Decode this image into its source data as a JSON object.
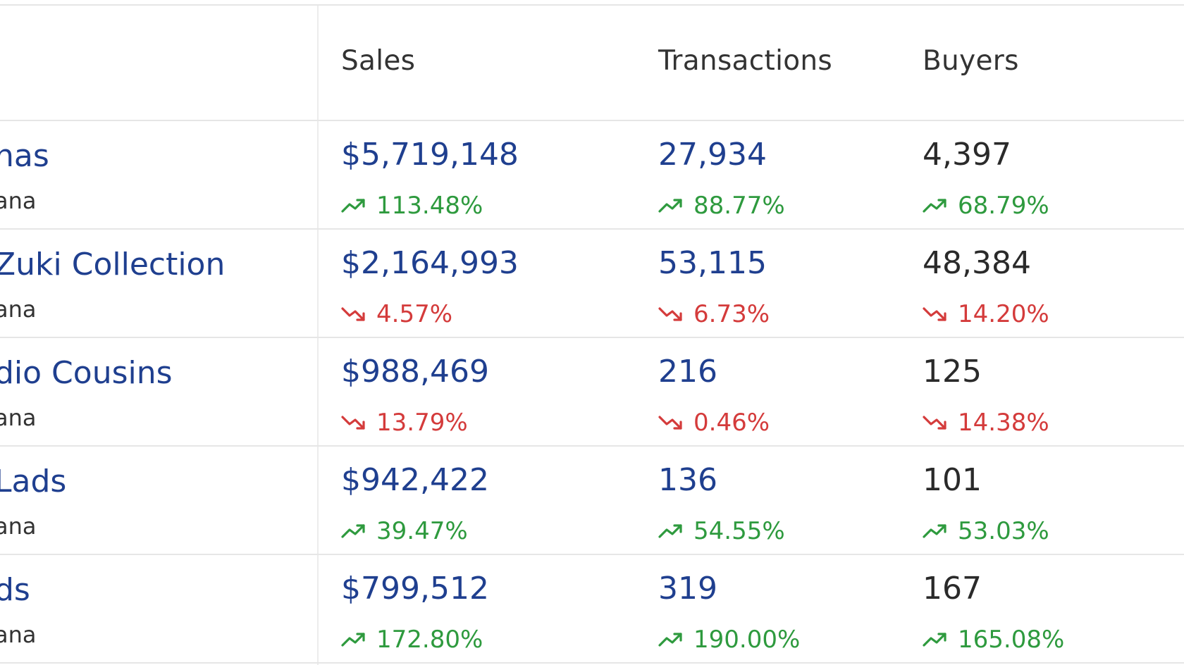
{
  "headers": {
    "sales": "Sales",
    "transactions": "Transactions",
    "buyers": "Buyers"
  },
  "colors": {
    "link": "#1f3f8f",
    "up": "#2e9a3e",
    "down": "#d43b3b"
  },
  "rows": [
    {
      "name": "nas",
      "chain": "ana",
      "sales": "$5,719,148",
      "sales_change": "113.48%",
      "sales_dir": "up",
      "transactions": "27,934",
      "transactions_change": "88.77%",
      "transactions_dir": "up",
      "buyers": "4,397",
      "buyers_change": "68.79%",
      "buyers_dir": "up"
    },
    {
      "name": "Zuki Collection",
      "chain": "ana",
      "sales": "$2,164,993",
      "sales_change": "4.57%",
      "sales_dir": "down",
      "transactions": "53,115",
      "transactions_change": "6.73%",
      "transactions_dir": "down",
      "buyers": "48,384",
      "buyers_change": "14.20%",
      "buyers_dir": "down"
    },
    {
      "name": "dio Cousins",
      "chain": "ana",
      "sales": "$988,469",
      "sales_change": "13.79%",
      "sales_dir": "down",
      "transactions": "216",
      "transactions_change": "0.46%",
      "transactions_dir": "down",
      "buyers": "125",
      "buyers_change": "14.38%",
      "buyers_dir": "down"
    },
    {
      "name": "Lads",
      "chain": "ana",
      "sales": "$942,422",
      "sales_change": "39.47%",
      "sales_dir": "up",
      "transactions": "136",
      "transactions_change": "54.55%",
      "transactions_dir": "up",
      "buyers": "101",
      "buyers_change": "53.03%",
      "buyers_dir": "up"
    },
    {
      "name": "ds",
      "chain": "ana",
      "sales": "$799,512",
      "sales_change": "172.80%",
      "sales_dir": "up",
      "transactions": "319",
      "transactions_change": "190.00%",
      "transactions_dir": "up",
      "buyers": "167",
      "buyers_change": "165.08%",
      "buyers_dir": "up"
    }
  ]
}
